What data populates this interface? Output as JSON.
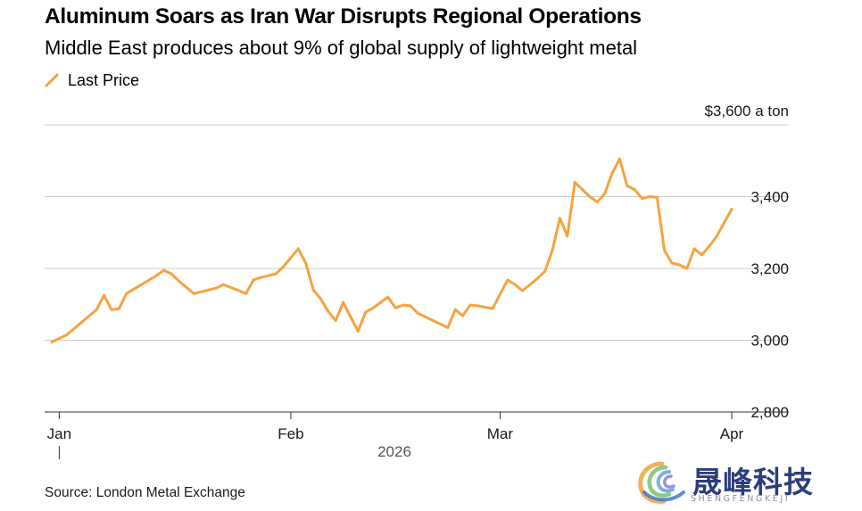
{
  "chart_data": {
    "type": "line",
    "title": "Aluminum Soars as Iran War Disrupts Regional Operations",
    "subtitle": "Middle East produces about 9% of global supply of lightweight metal",
    "legend": [
      {
        "label": "Last Price",
        "color": "#f5a33f"
      }
    ],
    "y_unit_label": "$3,600 a ton",
    "y_ticks": [
      {
        "value": 3600,
        "label": ""
      },
      {
        "value": 3400,
        "label": "3,400"
      },
      {
        "value": 3200,
        "label": "3,200"
      },
      {
        "value": 3000,
        "label": "3,000"
      },
      {
        "value": 2800,
        "label": "2,800"
      }
    ],
    "ylim": [
      2800,
      3600
    ],
    "xlim": [
      0,
      92
    ],
    "x_ticks": [
      {
        "value": 2,
        "label": "Jan"
      },
      {
        "value": 33,
        "label": "Feb"
      },
      {
        "value": 61,
        "label": "Mar"
      },
      {
        "value": 92,
        "label": "Apr"
      }
    ],
    "x_year_label": "2026",
    "series": [
      {
        "name": "Last Price",
        "color": "#f5a33f",
        "x": [
          1,
          3,
          5,
          7,
          8,
          9,
          10,
          11,
          13,
          15,
          16,
          17,
          18,
          20,
          21,
          22,
          23,
          24,
          27,
          28,
          29,
          30,
          31,
          32,
          34,
          35,
          36,
          37,
          38,
          39,
          40,
          41,
          42,
          43,
          44,
          45,
          46,
          47,
          48,
          49,
          50,
          51,
          52,
          54,
          55,
          56,
          57,
          58,
          59,
          60,
          62,
          63,
          64,
          65,
          66,
          67,
          68,
          69,
          70,
          71,
          72,
          73,
          74,
          75,
          76,
          77,
          78,
          79,
          80,
          81,
          82,
          83,
          84,
          85,
          86,
          87,
          88,
          89,
          90,
          91,
          92
        ],
        "values": [
          2995,
          3015,
          3050,
          3085,
          3125,
          3085,
          3088,
          3130,
          3155,
          3180,
          3195,
          3185,
          3165,
          3130,
          3135,
          3140,
          3145,
          3155,
          3130,
          3168,
          3175,
          3180,
          3185,
          3205,
          3255,
          3215,
          3140,
          3115,
          3080,
          3055,
          3105,
          3065,
          3025,
          3078,
          3090,
          3105,
          3120,
          3090,
          3098,
          3096,
          3075,
          3065,
          3055,
          3035,
          3085,
          3068,
          3098,
          3096,
          3092,
          3088,
          3168,
          3155,
          3138,
          3155,
          3172,
          3192,
          3250,
          3340,
          3290,
          3440,
          3420,
          3400,
          3385,
          3408,
          3465,
          3505,
          3430,
          3420,
          3395,
          3400,
          3398,
          3250,
          3215,
          3210,
          3200,
          3255,
          3238,
          3262,
          3290,
          3328,
          3365
        ]
      }
    ]
  },
  "source_text": "Source: London Metal Exchange",
  "watermark": {
    "text": "晟峰科技",
    "sub": "SHENGFENGKEJI"
  }
}
